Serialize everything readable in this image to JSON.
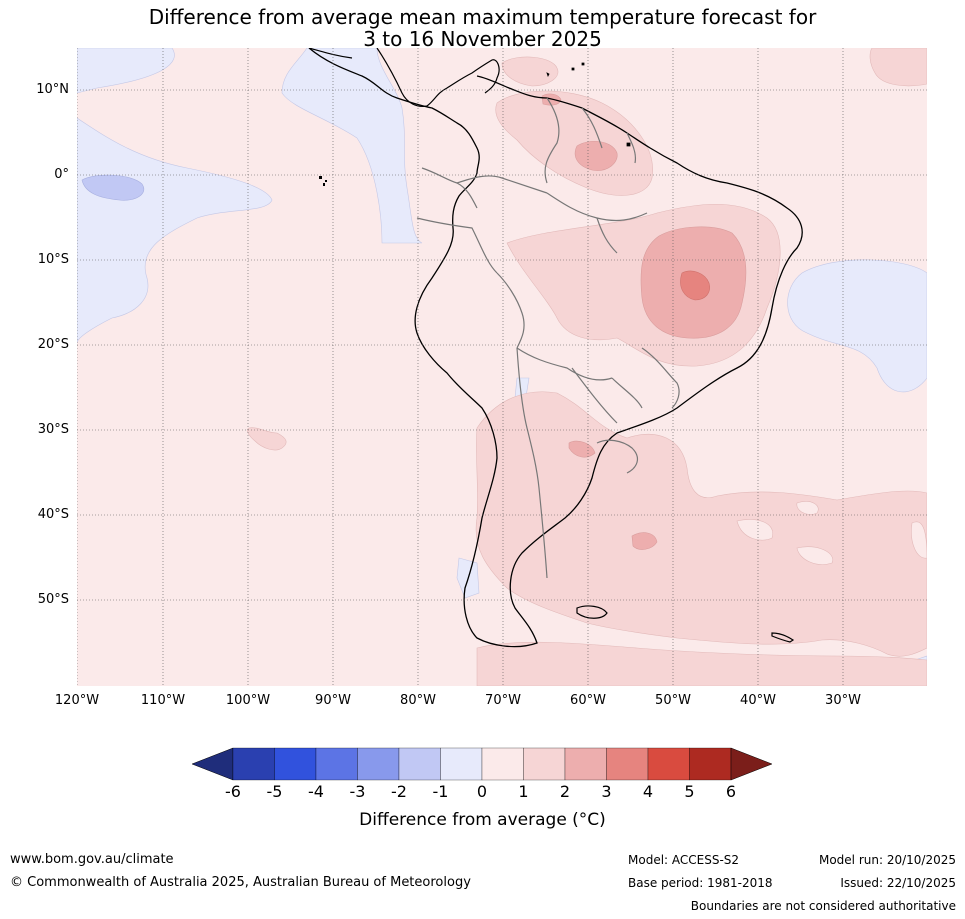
{
  "title_line1": "Difference from average mean maximum temperature forecast for",
  "title_line2": "3 to 16 November 2025",
  "lat_labels": [
    "10°N",
    "0°",
    "10°S",
    "20°S",
    "30°S",
    "40°S",
    "50°S"
  ],
  "lon_labels": [
    "120°W",
    "110°W",
    "100°W",
    "90°W",
    "80°W",
    "70°W",
    "60°W",
    "50°W",
    "40°W",
    "30°W"
  ],
  "colorbar": {
    "ticks": [
      "-6",
      "-5",
      "-4",
      "-3",
      "-2",
      "-1",
      "0",
      "1",
      "2",
      "3",
      "4",
      "5",
      "6"
    ],
    "colors": [
      "#1f2d7b",
      "#2a40b0",
      "#3152dd",
      "#5c74e5",
      "#8899ec",
      "#c1c8f4",
      "#e7eafb",
      "#fbeaea",
      "#f6d5d5",
      "#edaeae",
      "#e6847f",
      "#d94b3f",
      "#ad2a21",
      "#7b1e1a"
    ],
    "label": "Difference from average (°C)"
  },
  "footer": {
    "url": "www.bom.gov.au/climate",
    "copyright": "© Commonwealth of Australia 2025, Australian Bureau of Meteorology",
    "model": "Model: ACCESS-S2",
    "base_period": "Base period: 1981-2018",
    "model_run": "Model run: 20/10/2025",
    "issued": "Issued: 22/10/2025",
    "disclaimer": "Boundaries are not considered authoritative"
  }
}
